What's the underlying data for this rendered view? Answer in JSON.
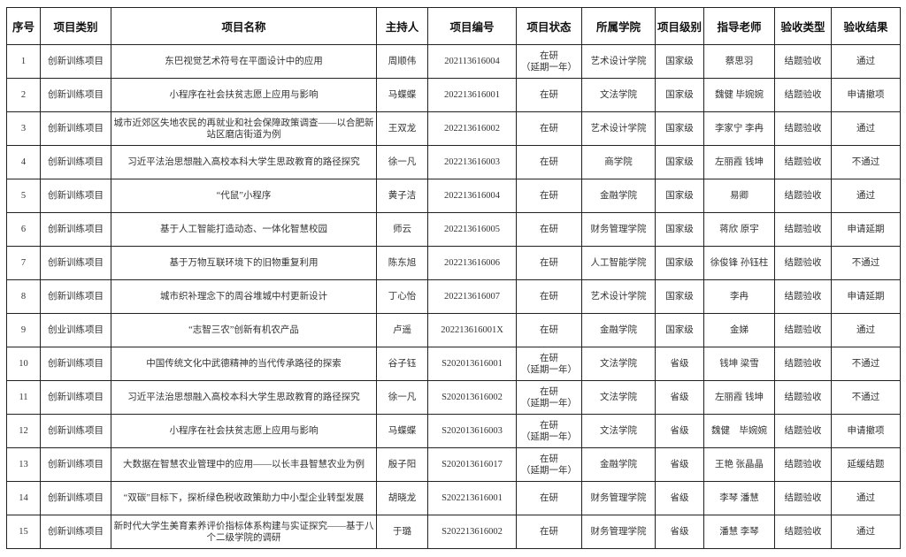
{
  "headers": [
    "序号",
    "项目类别",
    "项目名称",
    "主持人",
    "项目编号",
    "项目状态",
    "所属学院",
    "项目级别",
    "指导老师",
    "验收类型",
    "验收结果"
  ],
  "rows": [
    {
      "no": "1",
      "category": "创新训练项目",
      "name": "东巴视觉艺术符号在平面设计中的应用",
      "leader": "周顺伟",
      "code": "202113616004",
      "status": "在研",
      "status_note": "（延期一年）",
      "college": "艺术设计学院",
      "level": "国家级",
      "advisor": "蔡思羽",
      "check_type": "结题验收",
      "result": "通过"
    },
    {
      "no": "2",
      "category": "创新训练项目",
      "name": "小程序在社会扶贫志愿上应用与影响",
      "leader": "马蝶蝶",
      "code": "202213616001",
      "status": "在研",
      "status_note": "",
      "college": "文法学院",
      "level": "国家级",
      "advisor": "魏健 毕婉婉",
      "check_type": "结题验收",
      "result": "申请撤项"
    },
    {
      "no": "3",
      "category": "创新训练项目",
      "name": "城市近郊区失地农民的再就业和社会保障政策调查——以合肥新站区磨店街道为例",
      "leader": "王双龙",
      "code": "202213616002",
      "status": "在研",
      "status_note": "",
      "college": "艺术设计学院",
      "level": "国家级",
      "advisor": "李家宁 李冉",
      "check_type": "结题验收",
      "result": "通过"
    },
    {
      "no": "4",
      "category": "创新训练项目",
      "name": "习近平法治思想融入高校本科大学生思政教育的路径探究",
      "leader": "徐一凡",
      "code": "202213616003",
      "status": "在研",
      "status_note": "",
      "college": "商学院",
      "level": "国家级",
      "advisor": "左丽霞 钱坤",
      "check_type": "结题验收",
      "result": "不通过"
    },
    {
      "no": "5",
      "category": "创新训练项目",
      "name": "“代鼠”小程序",
      "leader": "黄子洁",
      "code": "202213616004",
      "status": "在研",
      "status_note": "",
      "college": "金融学院",
      "level": "国家级",
      "advisor": "易卿",
      "check_type": "结题验收",
      "result": "通过"
    },
    {
      "no": "6",
      "category": "创新训练项目",
      "name": "基于人工智能打造动态、一体化智慧校园",
      "leader": "师云",
      "code": "202213616005",
      "status": "在研",
      "status_note": "",
      "college": "财务管理学院",
      "level": "国家级",
      "advisor": "蒋欣 原宇",
      "check_type": "结题验收",
      "result": "申请延期"
    },
    {
      "no": "7",
      "category": "创新训练项目",
      "name": "基于万物互联环境下的旧物重复利用",
      "leader": "陈东旭",
      "code": "202213616006",
      "status": "在研",
      "status_note": "",
      "college": "人工智能学院",
      "level": "国家级",
      "advisor": "徐俊锋 孙钰柱",
      "check_type": "结题验收",
      "result": "不通过"
    },
    {
      "no": "8",
      "category": "创新训练项目",
      "name": "城市织补理念下的周谷堆城中村更新设计",
      "leader": "丁心怡",
      "code": "202213616007",
      "status": "在研",
      "status_note": "",
      "college": "艺术设计学院",
      "level": "国家级",
      "advisor": "李冉",
      "check_type": "结题验收",
      "result": "申请延期"
    },
    {
      "no": "9",
      "category": "创业训练项目",
      "name": "“志智三农”创新有机农产品",
      "leader": "卢遥",
      "code": "202213616001X",
      "status": "在研",
      "status_note": "",
      "college": "金融学院",
      "level": "国家级",
      "advisor": "金娣",
      "check_type": "结题验收",
      "result": "通过"
    },
    {
      "no": "10",
      "category": "创新训练项目",
      "name": "中国传统文化中武德精神的当代传承路径的探索",
      "leader": "谷子钰",
      "code": "S202013616001",
      "status": "在研",
      "status_note": "（延期一年）",
      "college": "文法学院",
      "level": "省级",
      "advisor": "钱坤 梁雪",
      "check_type": "结题验收",
      "result": "不通过"
    },
    {
      "no": "11",
      "category": "创新训练项目",
      "name": "习近平法治思想融入高校本科大学生思政教育的路径探究",
      "leader": "徐一凡",
      "code": "S202013616002",
      "status": "在研",
      "status_note": "（延期一年）",
      "college": "文法学院",
      "level": "省级",
      "advisor": "左丽霞 钱坤",
      "check_type": "结题验收",
      "result": "不通过"
    },
    {
      "no": "12",
      "category": "创新训练项目",
      "name": "小程序在社会扶贫志愿上应用与影响",
      "leader": "马蝶蝶",
      "code": "S202013616003",
      "status": "在研",
      "status_note": "（延期一年）",
      "college": "文法学院",
      "level": "省级",
      "advisor": "魏健　毕婉婉",
      "check_type": "结题验收",
      "result": "申请撤项"
    },
    {
      "no": "13",
      "category": "创新训练项目",
      "name": "大数据在智慧农业管理中的应用——以长丰县智慧农业为例",
      "leader": "殷子阳",
      "code": "S202013616017",
      "status": "在研",
      "status_note": "（延期一年）",
      "college": "金融学院",
      "level": "省级",
      "advisor": "王艳 张晶晶",
      "check_type": "结题验收",
      "result": "延缓结题"
    },
    {
      "no": "14",
      "category": "创新训练项目",
      "name": "“双碳”目标下，探析绿色税收政策助力中小型企业转型发展",
      "leader": "胡晓龙",
      "code": "S202213616001",
      "status": "在研",
      "status_note": "",
      "college": "财务管理学院",
      "level": "省级",
      "advisor": "李琴 潘慧",
      "check_type": "结题验收",
      "result": "通过"
    },
    {
      "no": "15",
      "category": "创新训练项目",
      "name": "新时代大学生美育素养评价指标体系构建与实证探究——基于八个二级学院的调研",
      "leader": "于璐",
      "code": "S202213616002",
      "status": "在研",
      "status_note": "",
      "college": "财务管理学院",
      "level": "省级",
      "advisor": "潘慧 李琴",
      "check_type": "结题验收",
      "result": "通过"
    }
  ]
}
